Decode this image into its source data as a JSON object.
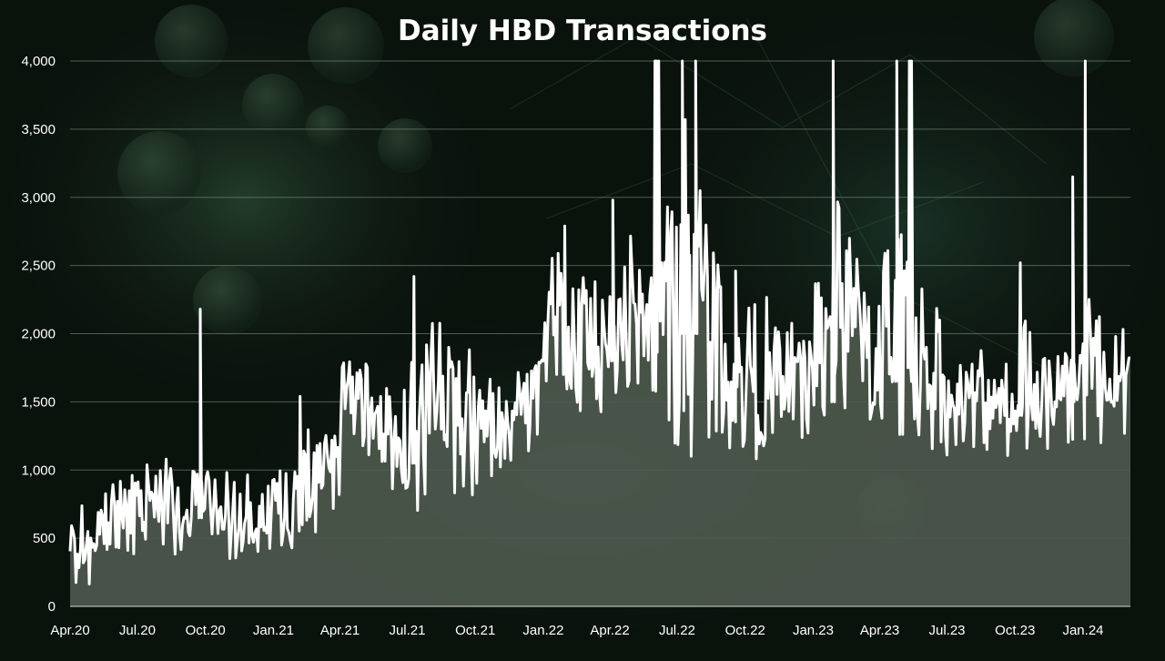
{
  "chart_data": {
    "type": "area",
    "title": "Daily HBD Transactions",
    "xlabel": "",
    "ylabel": "",
    "ylim": [
      0,
      4000
    ],
    "y_ticks": [
      0,
      500,
      1000,
      1500,
      2000,
      2500,
      3000,
      3500,
      4000
    ],
    "y_tick_labels": [
      "0",
      "500",
      "1,000",
      "1,500",
      "2,000",
      "2,500",
      "3,000",
      "3,500",
      "4,000"
    ],
    "x_tick_labels": [
      "Apr.20",
      "Jul.20",
      "Oct.20",
      "Jan.21",
      "Apr.21",
      "Jul.21",
      "Oct.21",
      "Jan.22",
      "Apr.22",
      "Jul.22",
      "Oct.22",
      "Jan.23",
      "Apr.23",
      "Jul.23",
      "Oct.23",
      "Jan.24"
    ],
    "grid": true,
    "legend": "none",
    "colors": {
      "line": "#ffffff",
      "area": "#4f5a4f",
      "grid": "#8a9a8a",
      "background": "#0c1a10"
    },
    "series": [
      {
        "x": [
          "2020-04",
          "2020-05",
          "2020-06",
          "2020-07",
          "2020-08",
          "2020-09",
          "2020-10",
          "2020-11",
          "2020-12",
          "2021-01",
          "2021-02",
          "2021-03",
          "2021-04",
          "2021-05",
          "2021-06",
          "2021-07",
          "2021-08",
          "2021-09",
          "2021-10",
          "2021-11",
          "2021-12",
          "2022-01",
          "2022-02",
          "2022-03",
          "2022-04",
          "2022-05",
          "2022-06",
          "2022-07",
          "2022-08",
          "2022-09",
          "2022-10",
          "2022-11",
          "2022-12",
          "2023-01",
          "2023-02",
          "2023-03",
          "2023-04",
          "2023-05",
          "2023-06",
          "2023-07",
          "2023-08",
          "2023-09",
          "2023-10",
          "2023-11",
          "2023-12",
          "2024-01",
          "2024-02",
          "2024-03"
        ],
        "values": [
          300,
          450,
          550,
          600,
          620,
          650,
          680,
          560,
          560,
          540,
          650,
          850,
          1150,
          1300,
          1200,
          1050,
          1300,
          1300,
          1150,
          1250,
          1350,
          1850,
          1700,
          1750,
          1800,
          1850,
          2200,
          2000,
          2100,
          1700,
          1450,
          1450,
          1500,
          1500,
          2000,
          1700,
          1650,
          1750,
          1500,
          1400,
          1400,
          1400,
          1400,
          1450,
          1500,
          1550,
          1400,
          1500
        ],
        "lows": [
          150,
          380,
          350,
          350,
          380,
          450,
          500,
          350,
          380,
          380,
          450,
          700,
          950,
          1000,
          850,
          700,
          900,
          750,
          800,
          1000,
          1000,
          1450,
          1350,
          1400,
          1400,
          1350,
          1100,
          1100,
          1150,
          1150,
          1050,
          1050,
          1150,
          1050,
          1450,
          1300,
          1250,
          1250,
          1150,
          1100,
          1100,
          1050,
          1100,
          1150,
          1200,
          1200,
          1050,
          1100
        ],
        "highs": [
          800,
          1000,
          1050,
          1050,
          1100,
          1150,
          2180,
          1000,
          950,
          1000,
          1540,
          1300,
          1960,
          1800,
          1600,
          2420,
          2380,
          1900,
          1670,
          1720,
          1800,
          2790,
          2570,
          2460,
          2980,
          2520,
          4000,
          4000,
          4000,
          2050,
          2450,
          2050,
          2240,
          2840,
          4000,
          2640,
          4000,
          4000,
          2550,
          1780,
          1880,
          1800,
          2520,
          1900,
          2000,
          4000,
          2140,
          2120
        ],
        "spikes": [
          {
            "x": "2020-09-24",
            "y": 2180
          },
          {
            "x": "2021-02-06",
            "y": 1540
          },
          {
            "x": "2021-07-10",
            "y": 2420
          },
          {
            "x": "2022-01-30",
            "y": 2790
          },
          {
            "x": "2022-04-05",
            "y": 2980
          },
          {
            "x": "2022-06-01",
            "y": 4000
          },
          {
            "x": "2022-06-03",
            "y": 4000
          },
          {
            "x": "2022-06-06",
            "y": 4000
          },
          {
            "x": "2022-07-08",
            "y": 4000
          },
          {
            "x": "2022-07-12",
            "y": 3570
          },
          {
            "x": "2022-07-16",
            "y": 2870
          },
          {
            "x": "2022-07-26",
            "y": 4000
          },
          {
            "x": "2022-09-18",
            "y": 2460
          },
          {
            "x": "2023-01-28",
            "y": 4000
          },
          {
            "x": "2023-04-24",
            "y": 4000
          },
          {
            "x": "2023-05-11",
            "y": 4000
          },
          {
            "x": "2023-05-14",
            "y": 4000
          },
          {
            "x": "2023-10-08",
            "y": 2520
          },
          {
            "x": "2023-12-18",
            "y": 3150
          },
          {
            "x": "2024-01-04",
            "y": 4000
          }
        ]
      }
    ]
  }
}
